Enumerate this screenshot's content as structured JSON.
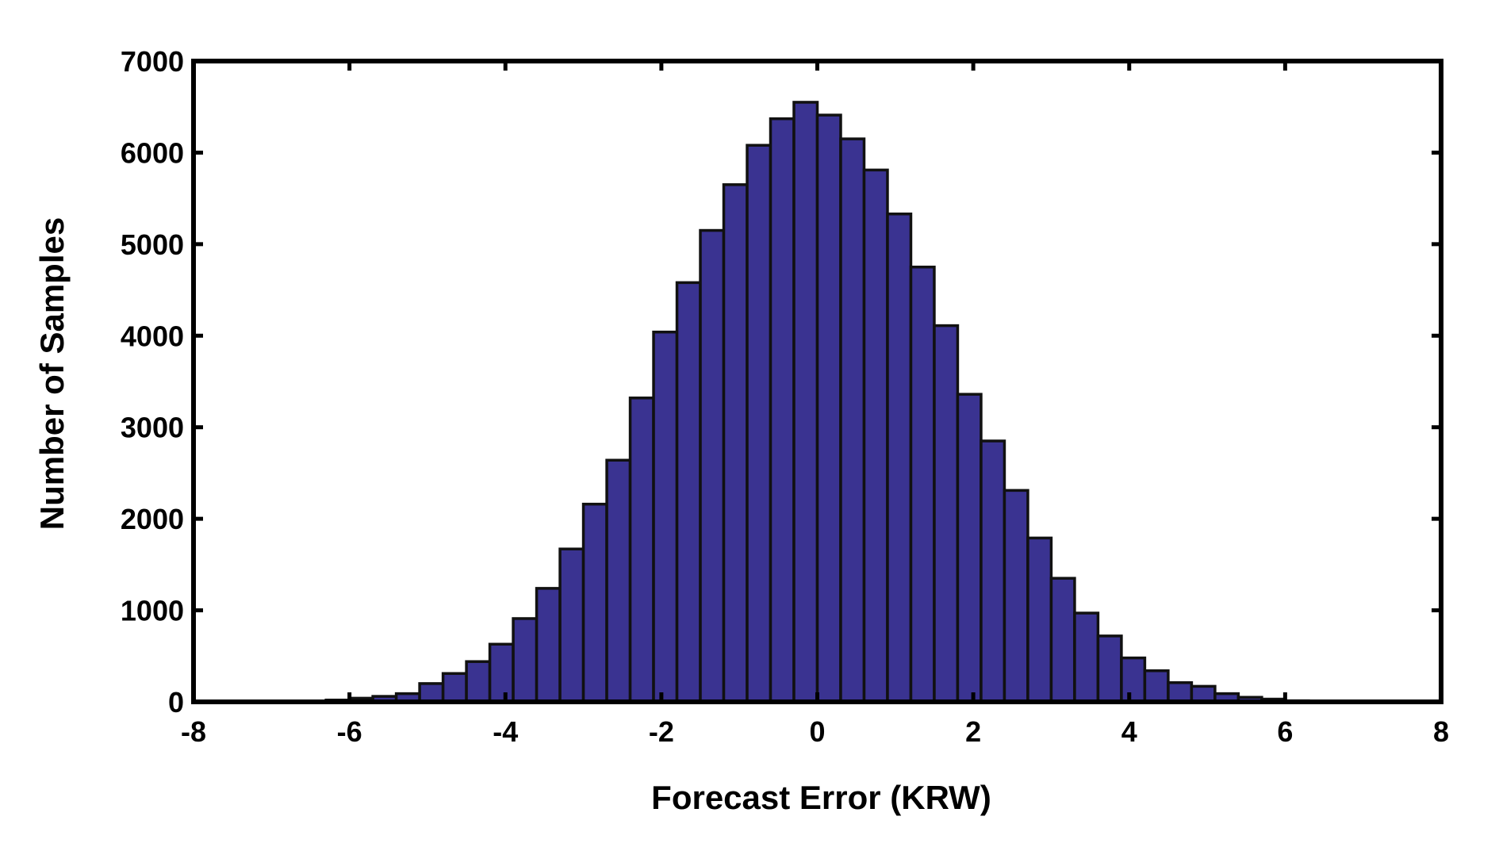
{
  "chart_data": {
    "type": "histogram",
    "title": "",
    "xlabel": "Forecast Error (KRW)",
    "ylabel": "Number  of  Samples",
    "xlim": [
      -8,
      8
    ],
    "ylim": [
      0,
      7000
    ],
    "x_ticks": [
      -8,
      -6,
      -4,
      -2,
      0,
      2,
      4,
      6,
      8
    ],
    "y_ticks": [
      0,
      1000,
      2000,
      3000,
      4000,
      5000,
      6000,
      7000
    ],
    "x_tick_labels": [
      "-8",
      "-6",
      "-4",
      "-2",
      "0",
      "2",
      "4",
      "6",
      "8"
    ],
    "y_tick_labels": [
      "0",
      "1000",
      "2000",
      "3000",
      "4000",
      "5000",
      "6000",
      "7000"
    ],
    "grid": false,
    "bin_width": 0.3,
    "bar_color": "#3a3391",
    "bar_edge_color": "#111111",
    "bins": [
      {
        "x0": -7.8,
        "x1": -7.5,
        "y": 2
      },
      {
        "x0": -7.5,
        "x1": -7.2,
        "y": 3
      },
      {
        "x0": -7.2,
        "x1": -6.9,
        "y": 4
      },
      {
        "x0": -6.9,
        "x1": -6.6,
        "y": 6
      },
      {
        "x0": -6.6,
        "x1": -6.3,
        "y": 10
      },
      {
        "x0": -6.3,
        "x1": -6.0,
        "y": 20
      },
      {
        "x0": -6.0,
        "x1": -5.7,
        "y": 40
      },
      {
        "x0": -5.7,
        "x1": -5.4,
        "y": 60
      },
      {
        "x0": -5.4,
        "x1": -5.1,
        "y": 90
      },
      {
        "x0": -5.1,
        "x1": -4.8,
        "y": 200
      },
      {
        "x0": -4.8,
        "x1": -4.5,
        "y": 310
      },
      {
        "x0": -4.5,
        "x1": -4.2,
        "y": 440
      },
      {
        "x0": -4.2,
        "x1": -3.9,
        "y": 630
      },
      {
        "x0": -3.9,
        "x1": -3.6,
        "y": 910
      },
      {
        "x0": -3.6,
        "x1": -3.3,
        "y": 1240
      },
      {
        "x0": -3.3,
        "x1": -3.0,
        "y": 1670
      },
      {
        "x0": -3.0,
        "x1": -2.7,
        "y": 2160
      },
      {
        "x0": -2.7,
        "x1": -2.4,
        "y": 2640
      },
      {
        "x0": -2.4,
        "x1": -2.1,
        "y": 3320
      },
      {
        "x0": -2.1,
        "x1": -1.8,
        "y": 4040
      },
      {
        "x0": -1.8,
        "x1": -1.5,
        "y": 4580
      },
      {
        "x0": -1.5,
        "x1": -1.2,
        "y": 5150
      },
      {
        "x0": -1.2,
        "x1": -0.9,
        "y": 5650
      },
      {
        "x0": -0.9,
        "x1": -0.6,
        "y": 6080
      },
      {
        "x0": -0.6,
        "x1": -0.3,
        "y": 6370
      },
      {
        "x0": -0.3,
        "x1": 0.0,
        "y": 6550
      },
      {
        "x0": 0.0,
        "x1": 0.3,
        "y": 6410
      },
      {
        "x0": 0.3,
        "x1": 0.6,
        "y": 6150
      },
      {
        "x0": 0.6,
        "x1": 0.9,
        "y": 5810
      },
      {
        "x0": 0.9,
        "x1": 1.2,
        "y": 5330
      },
      {
        "x0": 1.2,
        "x1": 1.5,
        "y": 4750
      },
      {
        "x0": 1.5,
        "x1": 1.8,
        "y": 4110
      },
      {
        "x0": 1.8,
        "x1": 2.1,
        "y": 3360
      },
      {
        "x0": 2.1,
        "x1": 2.4,
        "y": 2850
      },
      {
        "x0": 2.4,
        "x1": 2.7,
        "y": 2310
      },
      {
        "x0": 2.7,
        "x1": 3.0,
        "y": 1790
      },
      {
        "x0": 3.0,
        "x1": 3.3,
        "y": 1350
      },
      {
        "x0": 3.3,
        "x1": 3.6,
        "y": 970
      },
      {
        "x0": 3.6,
        "x1": 3.9,
        "y": 720
      },
      {
        "x0": 3.9,
        "x1": 4.2,
        "y": 480
      },
      {
        "x0": 4.2,
        "x1": 4.5,
        "y": 340
      },
      {
        "x0": 4.5,
        "x1": 4.8,
        "y": 210
      },
      {
        "x0": 4.8,
        "x1": 5.1,
        "y": 170
      },
      {
        "x0": 5.1,
        "x1": 5.4,
        "y": 90
      },
      {
        "x0": 5.4,
        "x1": 5.7,
        "y": 50
      },
      {
        "x0": 5.7,
        "x1": 6.0,
        "y": 30
      },
      {
        "x0": 6.0,
        "x1": 6.3,
        "y": 12
      },
      {
        "x0": 6.3,
        "x1": 6.6,
        "y": 8
      },
      {
        "x0": 6.6,
        "x1": 6.9,
        "y": 5
      },
      {
        "x0": 6.9,
        "x1": 7.2,
        "y": 3
      },
      {
        "x0": 7.2,
        "x1": 7.5,
        "y": 2
      }
    ]
  }
}
